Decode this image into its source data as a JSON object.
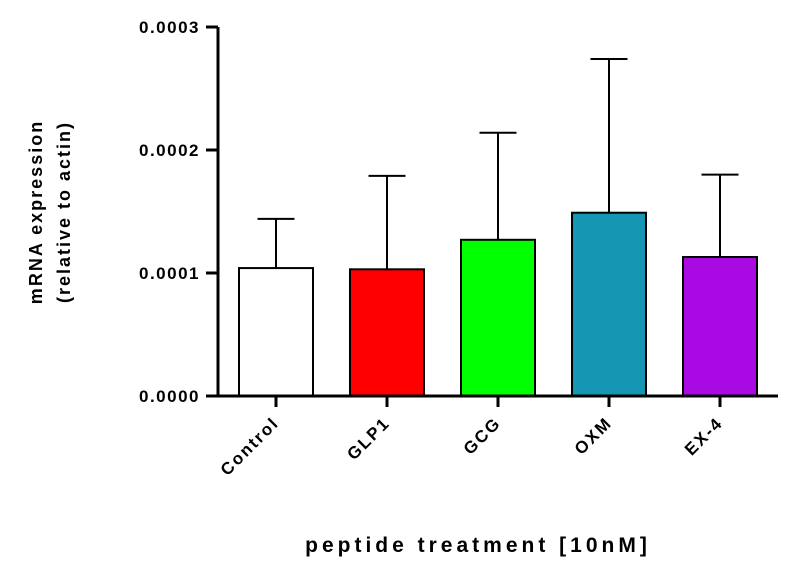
{
  "chart_data": {
    "type": "bar",
    "title": "",
    "ylabel_line1": "mRNA expression",
    "ylabel_line2": "(relative to actin)",
    "xlabel": "peptide treatment [10nM]",
    "ylim": [
      0,
      0.0003
    ],
    "yticks": [
      0,
      0.0001,
      0.0002,
      0.0003
    ],
    "ytick_labels": [
      "0.0000",
      "0.0001",
      "0.0002",
      "0.0003"
    ],
    "categories": [
      "Control",
      "GLP1",
      "GCG",
      "OXM",
      "EX-4"
    ],
    "values": [
      0.000104,
      0.000103,
      0.000127,
      0.000149,
      0.000113
    ],
    "errors": [
      4e-05,
      7.6e-05,
      8.7e-05,
      0.000125,
      6.7e-05
    ],
    "colors": [
      "#ffffff",
      "#ff0000",
      "#00ff00",
      "#1597b3",
      "#a90ae3"
    ],
    "grid": false,
    "legend": "none"
  }
}
